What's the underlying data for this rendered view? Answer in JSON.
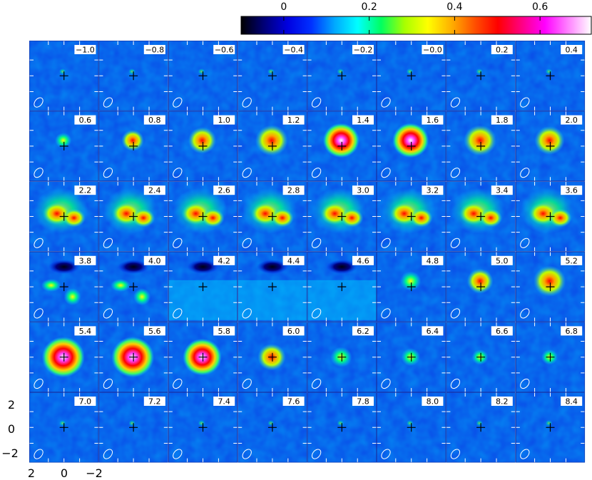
{
  "chart_data": {
    "type": "heatmap",
    "title": "",
    "colorbar": {
      "min": -0.1,
      "max": 0.72,
      "ticks": [
        0,
        0.2,
        0.4,
        0.6
      ],
      "tick_labels": [
        "0",
        "0.2",
        "0.4",
        "0.6"
      ],
      "colors": [
        "#000000",
        "#00007a",
        "#0000e0",
        "#0030ff",
        "#00a8ff",
        "#00ffff",
        "#00ff60",
        "#a8ff00",
        "#ffff00",
        "#ffb000",
        "#ff5000",
        "#ff0000",
        "#ff0080",
        "#ff00ff",
        "#ff80ff",
        "#ffffff"
      ]
    },
    "grid": {
      "rows": 6,
      "cols": 8
    },
    "x_tick_labels": [
      "2",
      "0",
      "−2"
    ],
    "y_tick_labels": [
      "2",
      "0",
      "−2"
    ],
    "panel_labels": [
      "−1.0",
      "−0.8",
      "−0.6",
      "−0.4",
      "−0.2",
      "−0.0",
      "0.2",
      "0.4",
      "0.6",
      "0.8",
      "1.0",
      "1.2",
      "1.4",
      "1.6",
      "1.8",
      "2.0",
      "2.2",
      "2.4",
      "2.6",
      "2.8",
      "3.0",
      "3.2",
      "3.4",
      "3.6",
      "3.8",
      "4.0",
      "4.2",
      "4.4",
      "4.6",
      "4.8",
      "5.0",
      "5.2",
      "5.4",
      "5.6",
      "5.8",
      "6.0",
      "6.2",
      "6.4",
      "6.6",
      "6.8",
      "7.0",
      "7.2",
      "7.4",
      "7.6",
      "7.8",
      "8.0",
      "8.2",
      "8.4"
    ],
    "peak_values": [
      0.12,
      0.13,
      0.14,
      0.14,
      0.14,
      0.14,
      0.14,
      0.13,
      0.26,
      0.36,
      0.45,
      0.52,
      0.58,
      0.58,
      0.52,
      0.48,
      0.42,
      0.4,
      0.38,
      0.38,
      0.36,
      0.36,
      0.36,
      0.36,
      0.34,
      0.32,
      0.12,
      0.12,
      0.14,
      0.33,
      0.42,
      0.52,
      0.7,
      0.68,
      0.62,
      0.45,
      0.34,
      0.3,
      0.26,
      0.26,
      0.13,
      0.12,
      0.1,
      0.08,
      0.07,
      0.06,
      0.06,
      0.06
    ],
    "beam_shape": "ellipse"
  }
}
